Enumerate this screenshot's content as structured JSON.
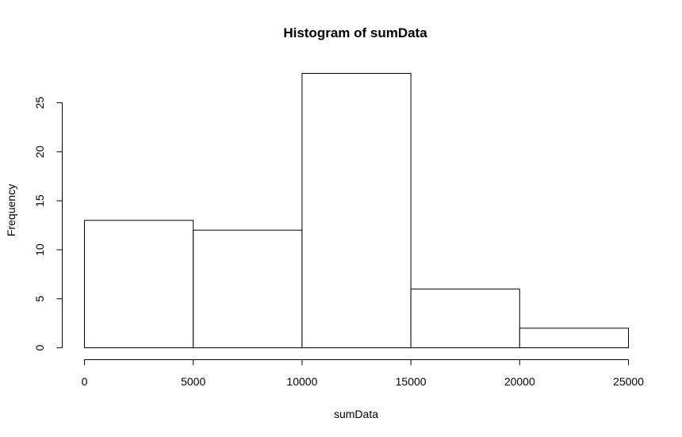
{
  "chart_data": {
    "type": "bar",
    "title": "Histogram of sumData",
    "xlabel": "sumData",
    "ylabel": "Frequency",
    "bins": [
      {
        "start": 0,
        "end": 5000,
        "count": 13
      },
      {
        "start": 5000,
        "end": 10000,
        "count": 12
      },
      {
        "start": 10000,
        "end": 15000,
        "count": 28
      },
      {
        "start": 15000,
        "end": 20000,
        "count": 6
      },
      {
        "start": 20000,
        "end": 25000,
        "count": 2
      }
    ],
    "categories": [
      "0-5000",
      "5000-10000",
      "10000-15000",
      "15000-20000",
      "20000-25000"
    ],
    "values": [
      13,
      12,
      28,
      6,
      2
    ],
    "xlim": [
      0,
      25000
    ],
    "ylim": [
      0,
      28
    ],
    "x_ticks": [
      0,
      5000,
      10000,
      15000,
      20000,
      25000
    ],
    "x_tick_labels": [
      "0",
      "5000",
      "10000",
      "15000",
      "20000",
      "25000"
    ],
    "y_ticks": [
      0,
      5,
      10,
      15,
      20,
      25
    ],
    "y_tick_labels": [
      "0",
      "5",
      "10",
      "15",
      "20",
      "25"
    ],
    "grid": false,
    "bar_fill": "#ffffff",
    "bar_stroke": "#000000"
  }
}
